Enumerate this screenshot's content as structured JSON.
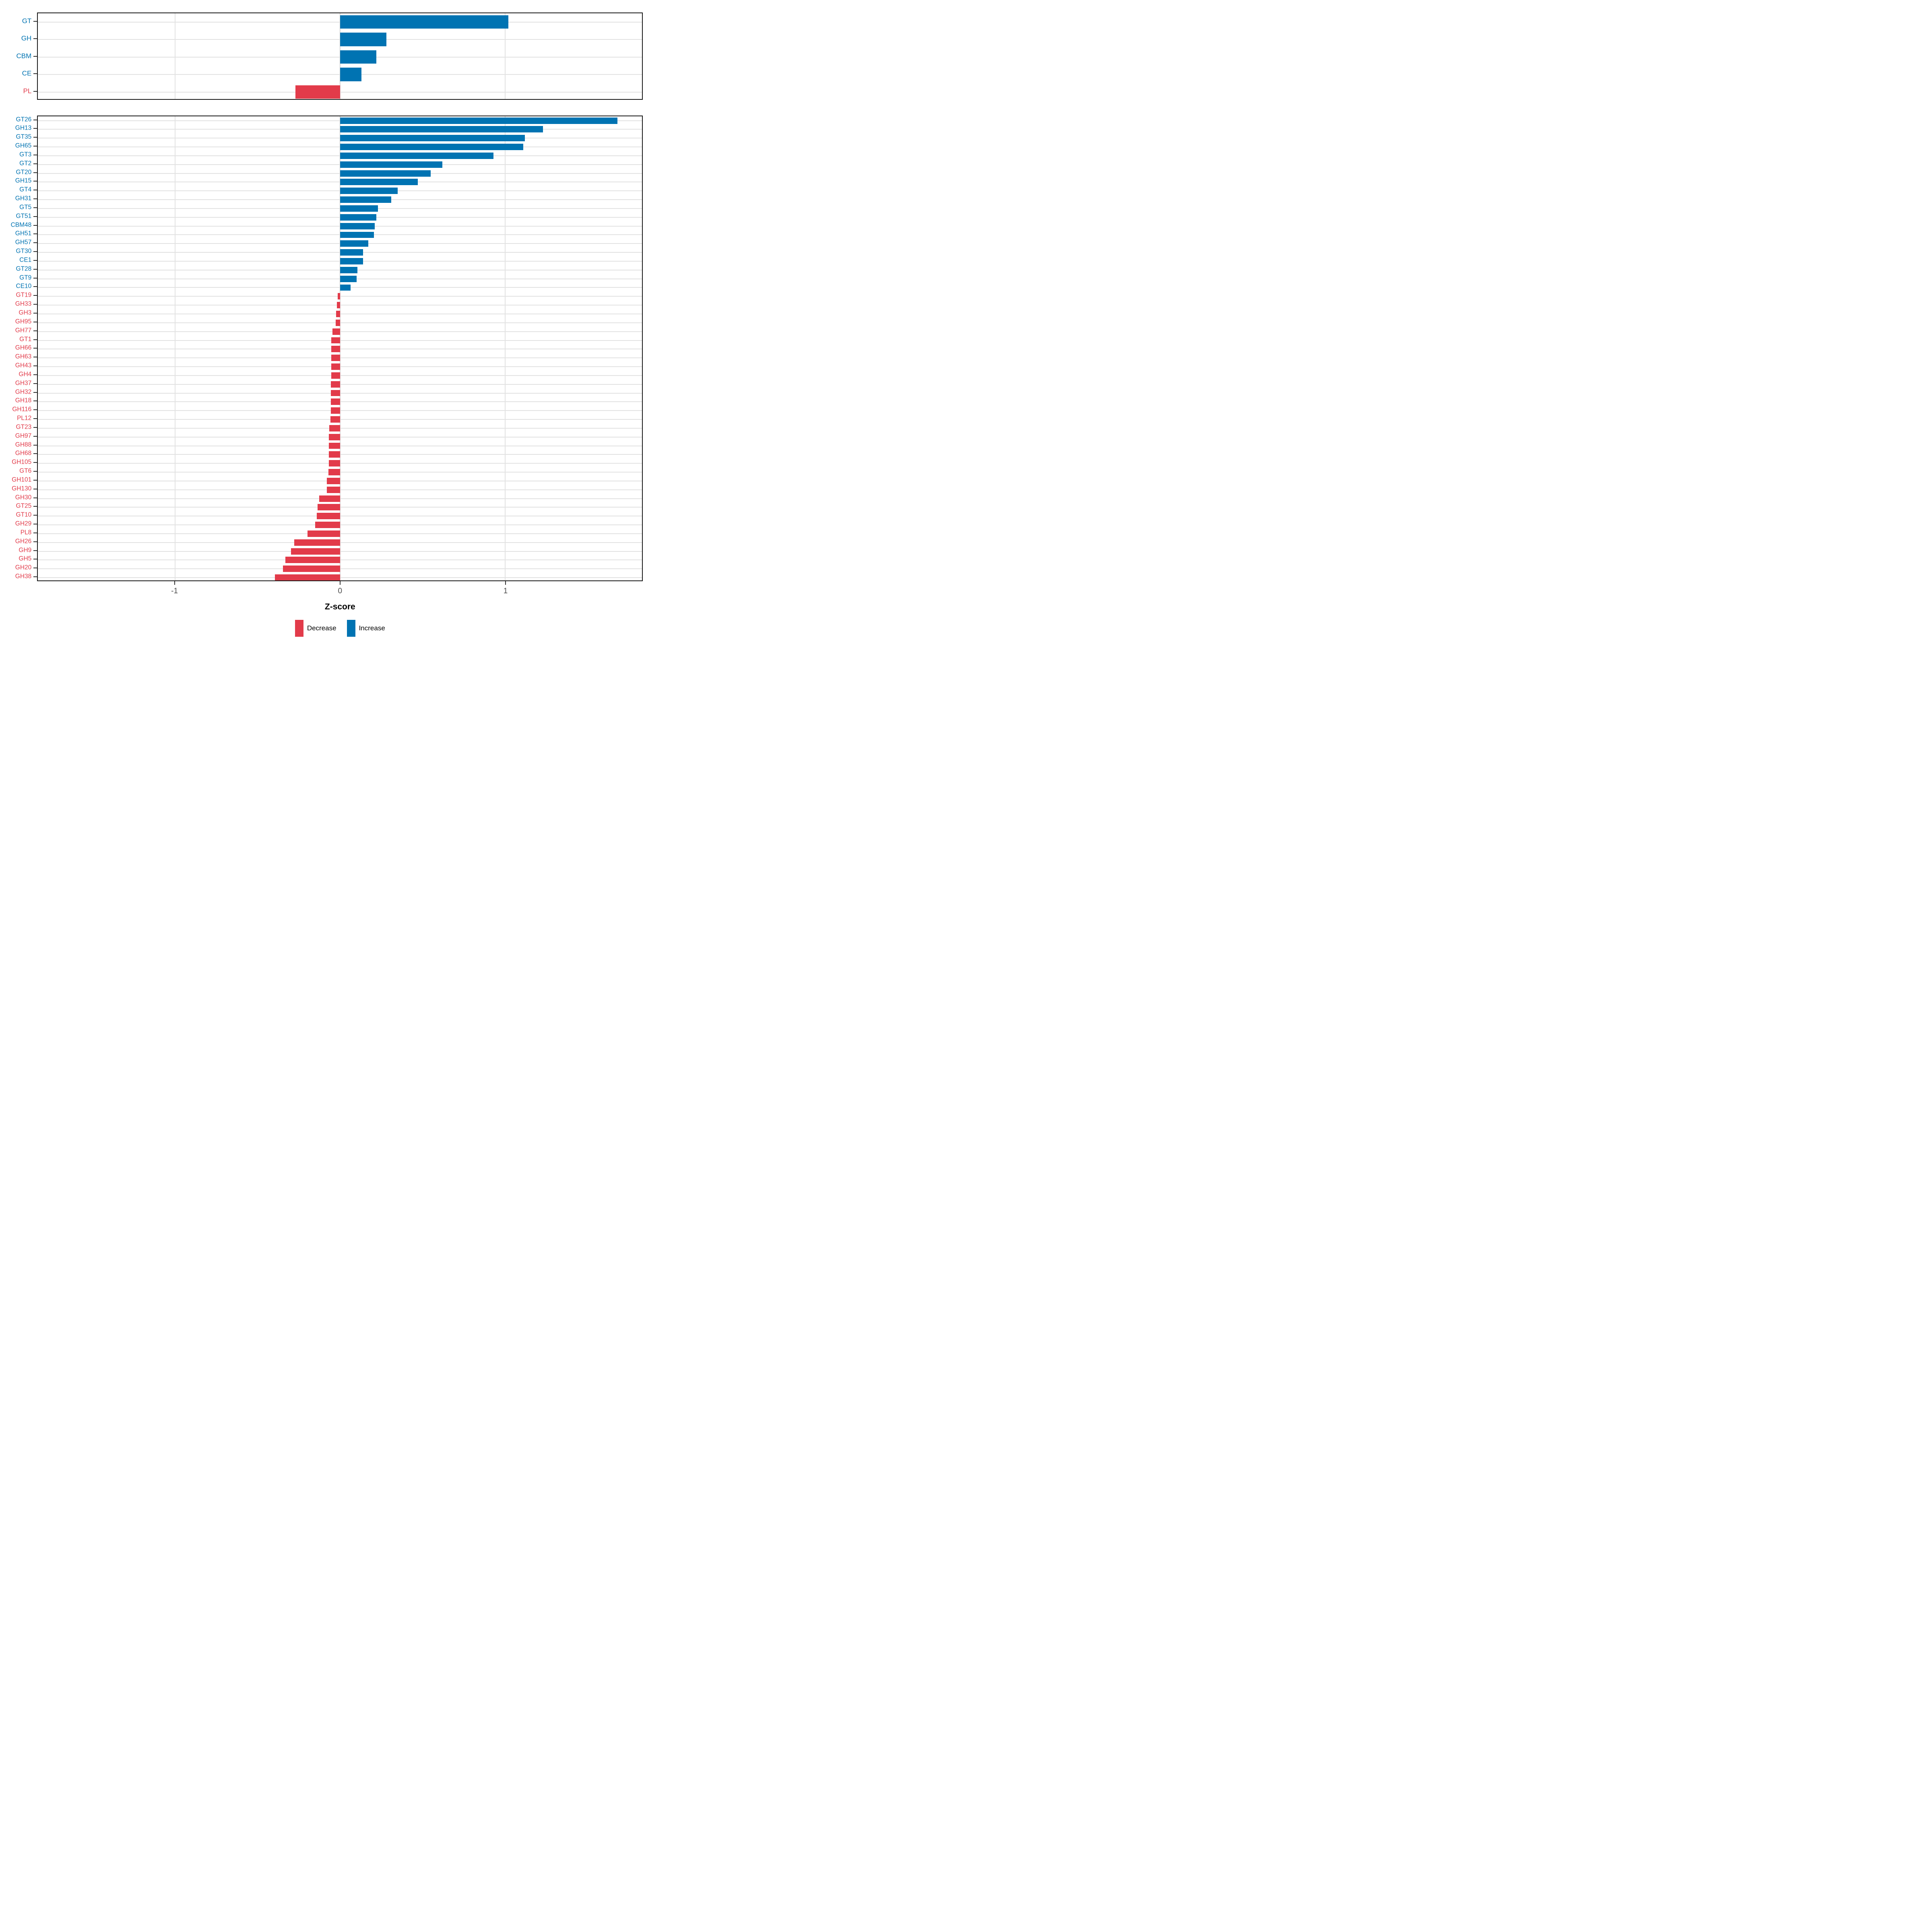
{
  "chart": {
    "x_axis": {
      "title": "Z-score",
      "min": -1.83,
      "max": 1.83,
      "ticks": [
        -1,
        0,
        1
      ],
      "tick_labels": [
        "-1",
        "0",
        "1"
      ]
    },
    "colors": {
      "increase": "#0073B2",
      "decrease": "#E23B4A",
      "gridline": "#e2e2e2",
      "panel_border": "#1a1a1a",
      "axis_text": "#4d4d4d"
    },
    "legend": [
      {
        "label": "Decrease",
        "color": "#E23B4A"
      },
      {
        "label": "Increase",
        "color": "#0073B2"
      }
    ]
  },
  "chart_data": [
    {
      "type": "bar",
      "panel": "top",
      "orientation": "horizontal",
      "title": "",
      "xlabel": "Z-score",
      "ylabel": "",
      "xlim": [
        -1.83,
        1.83
      ],
      "grid": true,
      "categories": [
        "GT",
        "GH",
        "CBM",
        "CE",
        "PL"
      ],
      "values": [
        1.02,
        0.28,
        0.22,
        0.13,
        -0.27
      ]
    },
    {
      "type": "bar",
      "panel": "bottom",
      "orientation": "horizontal",
      "title": "",
      "xlabel": "Z-score",
      "ylabel": "",
      "xlim": [
        -1.83,
        1.83
      ],
      "grid": true,
      "categories": [
        "GT26",
        "GH13",
        "GT35",
        "GH65",
        "GT3",
        "GT2",
        "GT20",
        "GH15",
        "GT4",
        "GH31",
        "GT5",
        "GT51",
        "CBM48",
        "GH51",
        "GH57",
        "GT30",
        "CE1",
        "GT28",
        "GT9",
        "CE10",
        "GT19",
        "GH33",
        "GH3",
        "GH95",
        "GH77",
        "GT1",
        "GH66",
        "GH63",
        "GH43",
        "GH4",
        "GH37",
        "GH32",
        "GH18",
        "GH116",
        "PL12",
        "GT23",
        "GH97",
        "GH88",
        "GH68",
        "GH105",
        "GT6",
        "GH101",
        "GH130",
        "GH30",
        "GT25",
        "GT10",
        "GH29",
        "PL8",
        "GH26",
        "GH9",
        "GH5",
        "GH20",
        "GH38"
      ],
      "values": [
        1.68,
        1.23,
        1.12,
        1.11,
        0.93,
        0.62,
        0.55,
        0.47,
        0.35,
        0.31,
        0.23,
        0.22,
        0.21,
        0.205,
        0.17,
        0.14,
        0.14,
        0.105,
        0.1,
        0.065,
        -0.015,
        -0.02,
        -0.025,
        -0.026,
        -0.047,
        -0.053,
        -0.053,
        -0.054,
        -0.054,
        -0.054,
        -0.055,
        -0.055,
        -0.056,
        -0.056,
        -0.057,
        -0.066,
        -0.067,
        -0.067,
        -0.068,
        -0.068,
        -0.069,
        -0.079,
        -0.081,
        -0.127,
        -0.136,
        -0.14,
        -0.15,
        -0.196,
        -0.278,
        -0.298,
        -0.33,
        -0.346,
        -0.395
      ]
    }
  ]
}
